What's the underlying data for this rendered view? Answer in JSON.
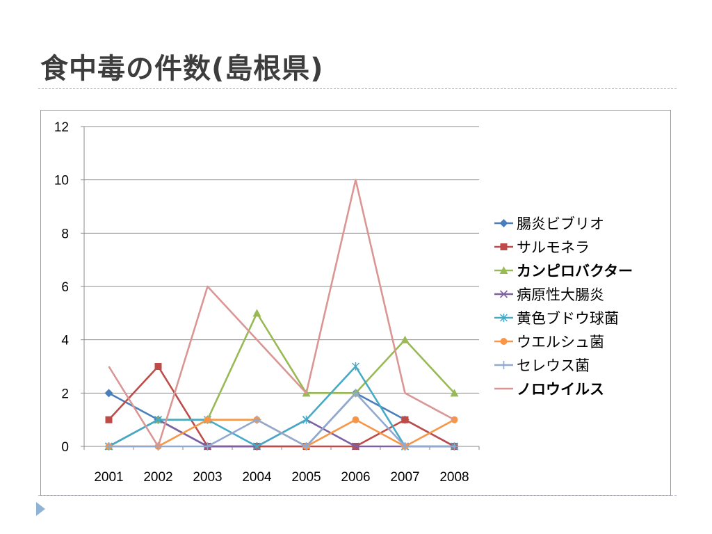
{
  "slide": {
    "title": "食中毒の件数(島根県)"
  },
  "chart_data": {
    "type": "line",
    "title": "",
    "xlabel": "",
    "ylabel": "",
    "categories": [
      "2001",
      "2002",
      "2003",
      "2004",
      "2005",
      "2006",
      "2007",
      "2008"
    ],
    "ylim": [
      0,
      12
    ],
    "yticks": [
      "0",
      "2",
      "4",
      "6",
      "8",
      "10",
      "12"
    ],
    "grid": "horizontal",
    "legend": "right",
    "series": [
      {
        "name": "腸炎ビブリオ",
        "values": [
          2,
          1,
          0,
          0,
          0,
          2,
          1,
          0
        ],
        "color": "#4a7ebb",
        "marker": "diamond",
        "bold": false
      },
      {
        "name": "サルモネラ",
        "values": [
          1,
          3,
          0,
          0,
          0,
          0,
          1,
          0
        ],
        "color": "#be4b48",
        "marker": "square",
        "bold": false
      },
      {
        "name": "カンピロバクター",
        "values": [
          0,
          1,
          1,
          5,
          2,
          2,
          4,
          2
        ],
        "color": "#98b954",
        "marker": "triangle",
        "bold": true
      },
      {
        "name": "病原性大腸炎",
        "values": [
          0,
          1,
          0,
          0,
          1,
          0,
          0,
          0
        ],
        "color": "#7d60a0",
        "marker": "x",
        "bold": false
      },
      {
        "name": "黄色ブドウ球菌",
        "values": [
          0,
          1,
          1,
          0,
          1,
          3,
          0,
          0
        ],
        "color": "#46aac5",
        "marker": "star",
        "bold": false
      },
      {
        "name": "ウエルシュ菌",
        "values": [
          0,
          0,
          1,
          1,
          0,
          1,
          0,
          1
        ],
        "color": "#f79646",
        "marker": "circle",
        "bold": false
      },
      {
        "name": "セレウス菌",
        "values": [
          0,
          0,
          0,
          1,
          0,
          2,
          0,
          0
        ],
        "color": "#92a9cf",
        "marker": "plus",
        "bold": false
      },
      {
        "name": "ノロウイルス",
        "values": [
          3,
          0,
          6,
          4,
          2,
          10,
          2,
          1
        ],
        "color": "#d99694",
        "marker": "none",
        "bold": true
      }
    ]
  }
}
